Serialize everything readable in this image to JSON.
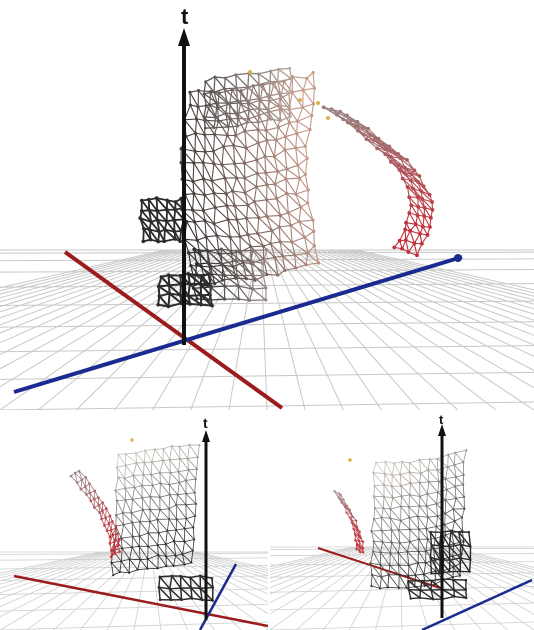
{
  "figure": {
    "panels": [
      {
        "id": "main-view",
        "axis_label": "t",
        "axes": [
          "vertical-black",
          "red",
          "blue"
        ],
        "view": "front"
      },
      {
        "id": "left-view",
        "axis_label": "t",
        "axes": [
          "vertical-black",
          "red",
          "blue"
        ],
        "view": "rotated-left"
      },
      {
        "id": "right-view",
        "axis_label": "t",
        "axes": [
          "vertical-black",
          "red",
          "blue"
        ],
        "view": "rotated-right"
      }
    ],
    "colors": {
      "axis_vertical": "#111111",
      "axis_red": "#9b1c1c",
      "axis_blue": "#1b2a8f",
      "grid": "#c8c8c8",
      "mesh_dark": "#2b2b2b",
      "mesh_light": "#bdbdbd",
      "mesh_red": "#c2303a",
      "node_yellow": "#d9b24a"
    }
  }
}
